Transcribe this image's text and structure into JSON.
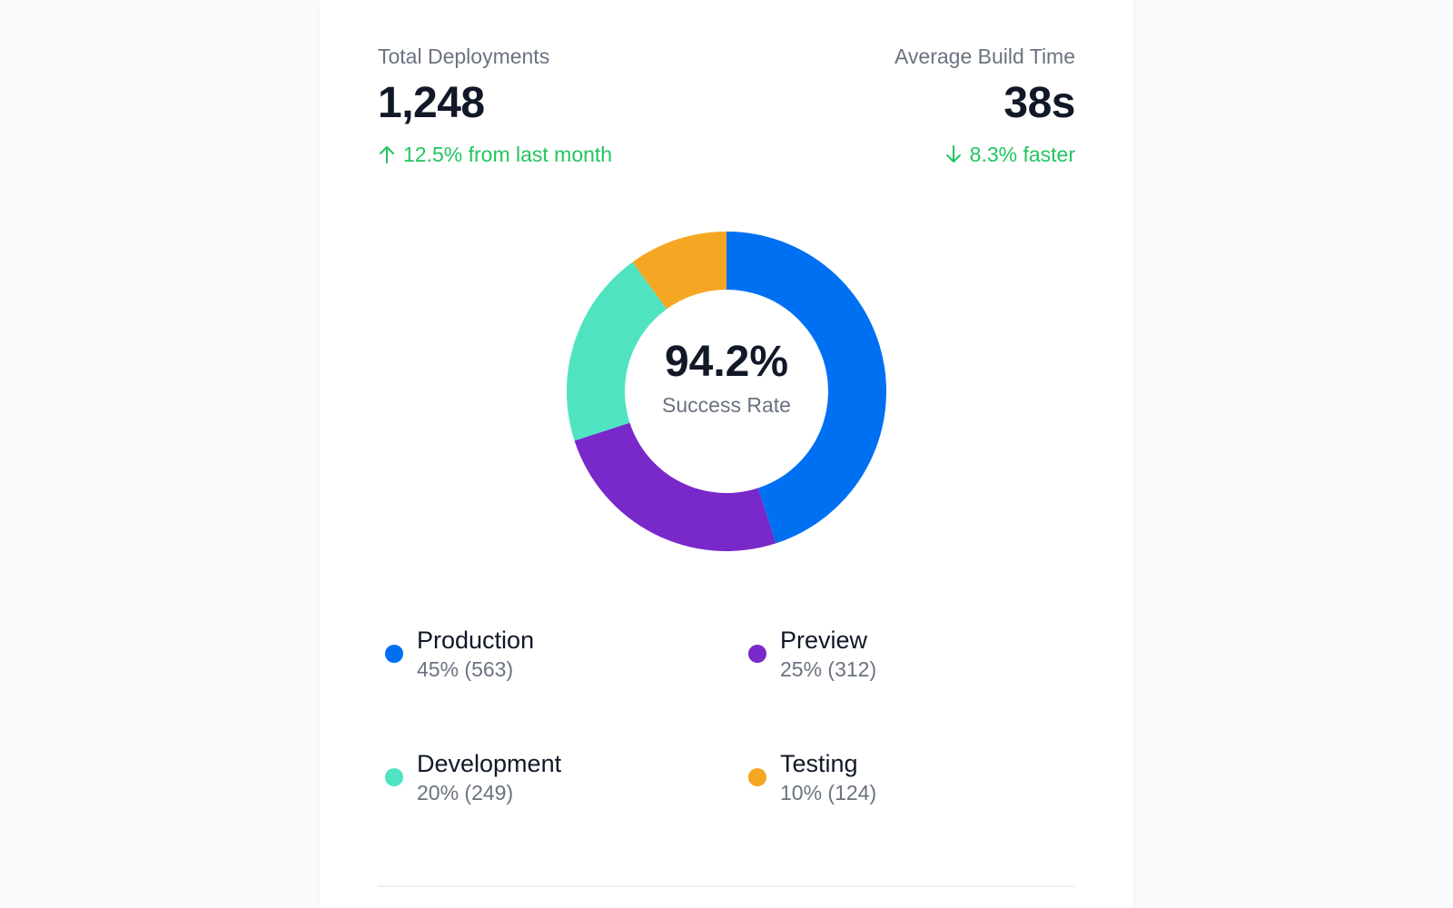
{
  "stats": {
    "total": {
      "label": "Total Deployments",
      "value": "1,248",
      "change": "12.5% from last month",
      "icon": "arrow-up-icon"
    },
    "build": {
      "label": "Average Build Time",
      "value": "38s",
      "change": "8.3% faster",
      "icon": "arrow-down-icon"
    }
  },
  "chart_data": {
    "type": "pie",
    "variant": "donut",
    "center_value": "94.2%",
    "center_label": "Success Rate",
    "series": [
      {
        "name": "Production",
        "percent": 45,
        "count": 563,
        "text": "45% (563)",
        "color": "#0070F3"
      },
      {
        "name": "Preview",
        "percent": 25,
        "count": 312,
        "text": "25% (312)",
        "color": "#7928CA"
      },
      {
        "name": "Development",
        "percent": 20,
        "count": 249,
        "text": "20% (249)",
        "color": "#50E3C2"
      },
      {
        "name": "Testing",
        "percent": 10,
        "count": 124,
        "text": "10% (124)",
        "color": "#F5A623"
      }
    ],
    "legend_placement": "bottom"
  }
}
